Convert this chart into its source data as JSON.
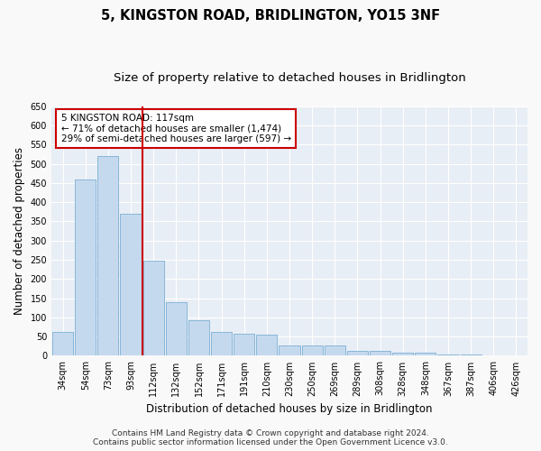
{
  "title": "5, KINGSTON ROAD, BRIDLINGTON, YO15 3NF",
  "subtitle": "Size of property relative to detached houses in Bridlington",
  "xlabel": "Distribution of detached houses by size in Bridlington",
  "ylabel": "Number of detached properties",
  "categories": [
    "34sqm",
    "54sqm",
    "73sqm",
    "93sqm",
    "112sqm",
    "132sqm",
    "152sqm",
    "171sqm",
    "191sqm",
    "210sqm",
    "230sqm",
    "250sqm",
    "269sqm",
    "289sqm",
    "308sqm",
    "328sqm",
    "348sqm",
    "367sqm",
    "387sqm",
    "406sqm",
    "426sqm"
  ],
  "values": [
    62,
    458,
    520,
    370,
    248,
    140,
    93,
    62,
    58,
    55,
    27,
    27,
    27,
    12,
    12,
    7,
    7,
    3,
    3,
    2,
    2
  ],
  "bar_color": "#c5d9ee",
  "bar_edge_color": "#7aafd4",
  "vline_color": "#cc0000",
  "annotation_text": "5 KINGSTON ROAD: 117sqm\n← 71% of detached houses are smaller (1,474)\n29% of semi-detached houses are larger (597) →",
  "annotation_box_color": "#ffffff",
  "annotation_box_edge": "#cc0000",
  "ylim": [
    0,
    650
  ],
  "yticks": [
    0,
    50,
    100,
    150,
    200,
    250,
    300,
    350,
    400,
    450,
    500,
    550,
    600,
    650
  ],
  "footer": "Contains HM Land Registry data © Crown copyright and database right 2024.\nContains public sector information licensed under the Open Government Licence v3.0.",
  "fig_bg_color": "#f9f9f9",
  "bg_color": "#e8eef5",
  "grid_color": "#ffffff",
  "title_fontsize": 10.5,
  "subtitle_fontsize": 9.5,
  "tick_fontsize": 7,
  "label_fontsize": 8.5,
  "annotation_fontsize": 7.5,
  "footer_fontsize": 6.5
}
